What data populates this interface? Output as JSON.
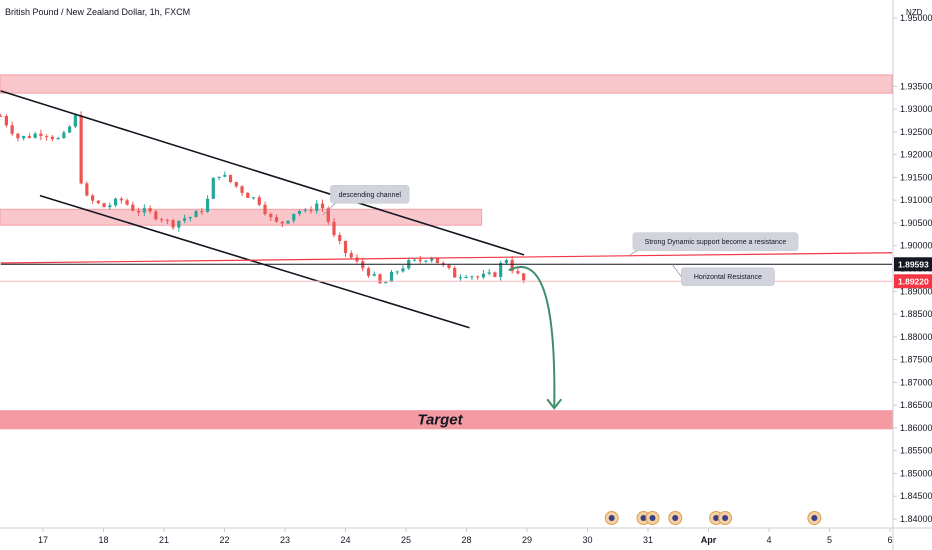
{
  "chart_data": {
    "type": "candlestick",
    "title": "British Pound / New Zealand Dollar, 1h, FXCM",
    "currency": "NZD",
    "ylim": [
      1.8375,
      1.955
    ],
    "y_ticks": [
      "1.95000",
      "1.93500",
      "1.93000",
      "1.92500",
      "1.92000",
      "1.91500",
      "1.91000",
      "1.90500",
      "1.90000",
      "1.89500",
      "1.89000",
      "1.88500",
      "1.88000",
      "1.87500",
      "1.87000",
      "1.86500",
      "1.86000",
      "1.85500",
      "1.85000",
      "1.84500",
      "1.84000"
    ],
    "x_ticks": [
      "17",
      "18",
      "21",
      "22",
      "23",
      "24",
      "25",
      "28",
      "29",
      "30",
      "31",
      "Apr",
      "4",
      "5",
      "6"
    ],
    "price_badges": [
      {
        "label": "1.89593",
        "value": 1.89593,
        "color": "#131722"
      },
      {
        "label": "1.89220",
        "value": 1.8922,
        "color": "#f23645"
      }
    ],
    "zones": [
      {
        "name": "upper-resistance-zone",
        "from": 1.9335,
        "to": 1.9375,
        "start_day": -1,
        "end_day": 21
      },
      {
        "name": "channel-resistance-zone",
        "from": 1.9045,
        "to": 1.908,
        "start_day": -1,
        "end_day": 7.25
      },
      {
        "name": "target-zone",
        "from": 1.8598,
        "to": 1.8638,
        "start_day": -1,
        "end_day": 21,
        "label": "Target"
      }
    ],
    "trend_lines": [
      {
        "name": "channel-upper-line",
        "from": [
          -0.7,
          1.934
        ],
        "to": [
          7.95,
          1.898
        ]
      },
      {
        "name": "channel-lower-line",
        "from": [
          -0.05,
          1.911
        ],
        "to": [
          7.05,
          1.882
        ]
      },
      {
        "name": "dynamic-resistance-line",
        "from": [
          -0.7,
          1.8962
        ],
        "to": [
          14.3,
          1.8985
        ]
      },
      {
        "name": "horizontal-resistance-line",
        "from": [
          -0.7,
          1.89593
        ],
        "to": [
          14.3,
          1.89593
        ]
      }
    ],
    "callouts": [
      {
        "text": "descending channel",
        "box_day": 4.75,
        "box_value": 1.9113,
        "tip_day": 4.63,
        "tip_value": 1.9068
      },
      {
        "text": "Strong Dynamic support become a resistance",
        "box_day": 9.75,
        "box_value": 1.9009,
        "tip_day": 9.7,
        "tip_value": 1.898
      },
      {
        "text": "Horizontal  Resistance",
        "box_day": 10.55,
        "box_value": 1.8932,
        "tip_day": 10.4,
        "tip_value": 1.8959
      }
    ],
    "projection": {
      "from": [
        7.7,
        1.8946
      ],
      "to": [
        8.45,
        1.863
      ]
    },
    "ohlc_keypoints": [
      [
        -0.7,
        1.9285
      ],
      [
        -0.4,
        1.9235
      ],
      [
        0.0,
        1.925
      ],
      [
        0.3,
        1.923
      ],
      [
        0.55,
        1.9285
      ],
      [
        0.6,
        1.93
      ],
      [
        0.62,
        1.915
      ],
      [
        0.7,
        1.9105
      ],
      [
        1.0,
        1.9085
      ],
      [
        1.3,
        1.91
      ],
      [
        1.5,
        1.908
      ],
      [
        1.8,
        1.907
      ],
      [
        2.0,
        1.906
      ],
      [
        2.1,
        1.9045
      ],
      [
        2.3,
        1.906
      ],
      [
        2.5,
        1.9065
      ],
      [
        2.7,
        1.909
      ],
      [
        2.8,
        1.914
      ],
      [
        2.9,
        1.916
      ],
      [
        3.2,
        1.913
      ],
      [
        3.4,
        1.911
      ],
      [
        3.6,
        1.9095
      ],
      [
        3.75,
        1.906
      ],
      [
        3.9,
        1.9045
      ],
      [
        4.2,
        1.908
      ],
      [
        4.35,
        1.907
      ],
      [
        4.5,
        1.9095
      ],
      [
        4.65,
        1.908
      ],
      [
        4.8,
        1.902
      ],
      [
        5.0,
        1.8985
      ],
      [
        5.2,
        1.896
      ],
      [
        5.4,
        1.894
      ],
      [
        5.6,
        1.891
      ],
      [
        5.8,
        1.894
      ],
      [
        6.0,
        1.896
      ],
      [
        6.2,
        1.8965
      ],
      [
        6.4,
        1.898
      ],
      [
        6.6,
        1.8955
      ],
      [
        6.8,
        1.8935
      ],
      [
        7.0,
        1.894
      ],
      [
        7.2,
        1.893
      ],
      [
        7.45,
        1.8935
      ],
      [
        7.65,
        1.8975
      ],
      [
        7.8,
        1.894
      ],
      [
        7.95,
        1.8922
      ]
    ],
    "colors": {
      "bullish": "#26a69a",
      "bearish": "#ef5350",
      "zone": "#f7a6ad",
      "arrow": "#3e8e6e"
    },
    "event_icons": [
      {
        "day": 9.4,
        "count": 1
      },
      {
        "day": 10.0,
        "count": 2
      },
      {
        "day": 10.45,
        "count": 1
      },
      {
        "day": 11.2,
        "count": 2
      },
      {
        "day": 12.75,
        "count": 1
      }
    ]
  }
}
